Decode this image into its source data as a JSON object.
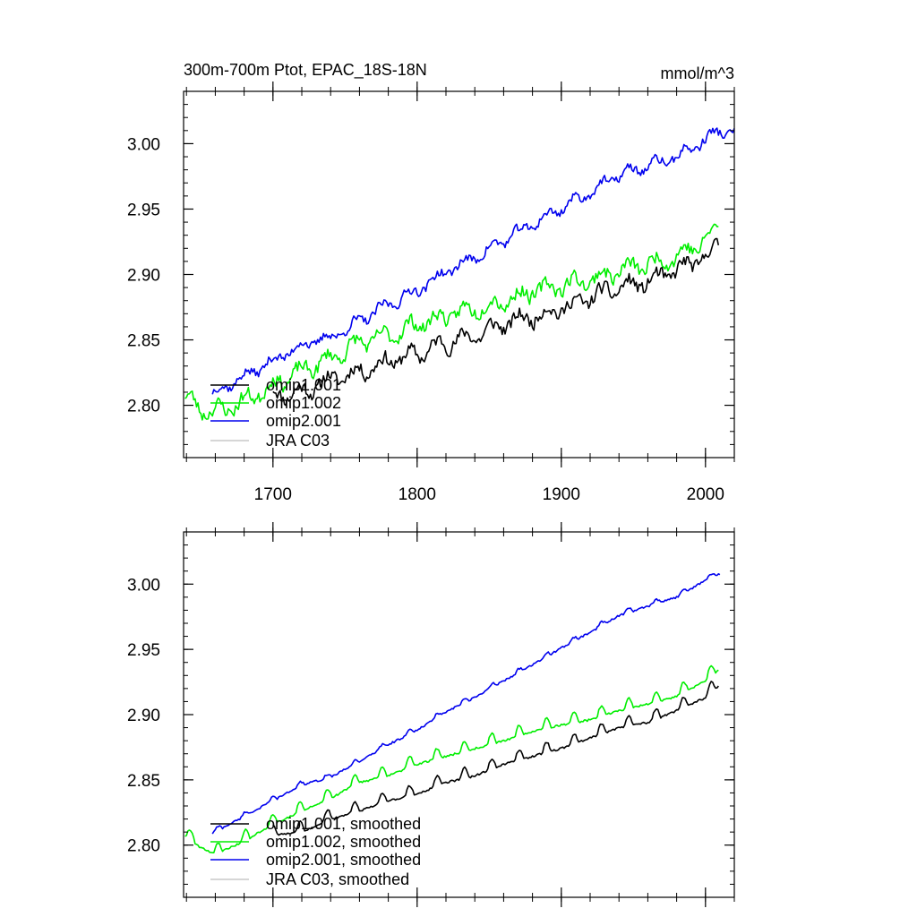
{
  "chart_data": [
    {
      "type": "line",
      "title": "300m-700m Ptot, EPAC_18S-18N",
      "units": "mmol/m^3",
      "xlim": [
        1638,
        2020
      ],
      "ylim": [
        2.76,
        3.04
      ],
      "x_ticks": [
        1700,
        1800,
        1900,
        2000
      ],
      "x_tick_labels": [
        "1700",
        "1800",
        "1900",
        "2000"
      ],
      "y_ticks": [
        2.8,
        2.85,
        2.9,
        2.95,
        3.0
      ],
      "y_tick_labels": [
        "2.80",
        "2.85",
        "2.90",
        "2.95",
        "3.00"
      ],
      "legend_position": "bottom-left",
      "series": [
        {
          "name": "omip1.001",
          "color": "#000000",
          "start_year": 1700,
          "end_year": 2009,
          "step": 1,
          "seed": 11,
          "anchors": [
            [
              1700,
              2.808
            ],
            [
              1720,
              2.81
            ],
            [
              1740,
              2.82
            ],
            [
              1760,
              2.826
            ],
            [
              1780,
              2.834
            ],
            [
              1800,
              2.839
            ],
            [
              1820,
              2.848
            ],
            [
              1840,
              2.853
            ],
            [
              1860,
              2.862
            ],
            [
              1880,
              2.868
            ],
            [
              1900,
              2.874
            ],
            [
              1920,
              2.882
            ],
            [
              1940,
              2.89
            ],
            [
              1960,
              2.894
            ],
            [
              1980,
              2.903
            ],
            [
              2000,
              2.913
            ],
            [
              2009,
              2.922
            ]
          ],
          "amplitude": 0.009,
          "period": 19
        },
        {
          "name": "omip1.002",
          "color": "#00ee00",
          "start_year": 1639,
          "end_year": 2009,
          "step": 1,
          "seed": 23,
          "anchors": [
            [
              1639,
              2.806
            ],
            [
              1650,
              2.798
            ],
            [
              1660,
              2.795
            ],
            [
              1680,
              2.803
            ],
            [
              1700,
              2.816
            ],
            [
              1720,
              2.826
            ],
            [
              1740,
              2.836
            ],
            [
              1760,
              2.848
            ],
            [
              1780,
              2.853
            ],
            [
              1800,
              2.862
            ],
            [
              1820,
              2.868
            ],
            [
              1840,
              2.874
            ],
            [
              1860,
              2.88
            ],
            [
              1880,
              2.887
            ],
            [
              1900,
              2.892
            ],
            [
              1920,
              2.896
            ],
            [
              1940,
              2.903
            ],
            [
              1960,
              2.908
            ],
            [
              1980,
              2.914
            ],
            [
              2000,
              2.926
            ],
            [
              2009,
              2.936
            ]
          ],
          "amplitude": 0.009,
          "period": 19
        },
        {
          "name": "omip2.001",
          "color": "#0000ee",
          "start_year": 1658,
          "end_year": 2020,
          "step": 1,
          "seed": 37,
          "anchors": [
            [
              1658,
              2.809
            ],
            [
              1680,
              2.822
            ],
            [
              1700,
              2.834
            ],
            [
              1720,
              2.846
            ],
            [
              1740,
              2.852
            ],
            [
              1760,
              2.864
            ],
            [
              1780,
              2.877
            ],
            [
              1800,
              2.888
            ],
            [
              1820,
              2.902
            ],
            [
              1840,
              2.913
            ],
            [
              1860,
              2.926
            ],
            [
              1880,
              2.938
            ],
            [
              1900,
              2.951
            ],
            [
              1920,
              2.963
            ],
            [
              1940,
              2.976
            ],
            [
              1960,
              2.983
            ],
            [
              1980,
              2.99
            ],
            [
              2000,
              3.003
            ],
            [
              2010,
              3.01
            ],
            [
              2020,
              3.008
            ]
          ],
          "amplitude": 0.006,
          "period": 19
        },
        {
          "name": "JRA C03",
          "color": "#c8c8c8",
          "start_year": null,
          "end_year": null,
          "anchors": []
        }
      ]
    },
    {
      "type": "line",
      "title": "",
      "units": "",
      "xlim": [
        1638,
        2020
      ],
      "ylim": [
        2.76,
        3.04
      ],
      "x_ticks": [
        1700,
        1800,
        1900,
        2000
      ],
      "y_ticks": [
        2.8,
        2.85,
        2.9,
        2.95,
        3.0
      ],
      "y_tick_labels": [
        "2.80",
        "2.85",
        "2.90",
        "2.95",
        "3.00"
      ],
      "legend_position": "bottom-left",
      "series": [
        {
          "name": "omip1.001, smoothed",
          "color": "#000000",
          "start_year": 1700,
          "end_year": 2009,
          "step": 1,
          "seed": 11,
          "anchors": [
            [
              1700,
              2.808
            ],
            [
              1720,
              2.81
            ],
            [
              1740,
              2.82
            ],
            [
              1760,
              2.826
            ],
            [
              1780,
              2.834
            ],
            [
              1800,
              2.839
            ],
            [
              1820,
              2.848
            ],
            [
              1840,
              2.853
            ],
            [
              1860,
              2.862
            ],
            [
              1880,
              2.868
            ],
            [
              1900,
              2.874
            ],
            [
              1920,
              2.882
            ],
            [
              1940,
              2.89
            ],
            [
              1960,
              2.894
            ],
            [
              1980,
              2.903
            ],
            [
              2000,
              2.913
            ],
            [
              2009,
              2.922
            ]
          ],
          "amplitude": 0.008,
          "period": 19
        },
        {
          "name": "omip1.002, smoothed",
          "color": "#00ee00",
          "start_year": 1639,
          "end_year": 2009,
          "step": 1,
          "seed": 23,
          "anchors": [
            [
              1639,
              2.807
            ],
            [
              1650,
              2.798
            ],
            [
              1660,
              2.793
            ],
            [
              1680,
              2.803
            ],
            [
              1700,
              2.816
            ],
            [
              1720,
              2.826
            ],
            [
              1740,
              2.836
            ],
            [
              1760,
              2.848
            ],
            [
              1780,
              2.853
            ],
            [
              1800,
              2.862
            ],
            [
              1820,
              2.868
            ],
            [
              1840,
              2.874
            ],
            [
              1860,
              2.88
            ],
            [
              1880,
              2.887
            ],
            [
              1900,
              2.892
            ],
            [
              1920,
              2.896
            ],
            [
              1940,
              2.903
            ],
            [
              1960,
              2.908
            ],
            [
              1980,
              2.914
            ],
            [
              2000,
              2.926
            ],
            [
              2009,
              2.934
            ]
          ],
          "amplitude": 0.008,
          "period": 19
        },
        {
          "name": "omip2.001, smoothed",
          "color": "#0000ee",
          "start_year": 1658,
          "end_year": 2010,
          "step": 1,
          "seed": 37,
          "anchors": [
            [
              1658,
              2.809
            ],
            [
              1680,
              2.822
            ],
            [
              1700,
              2.834
            ],
            [
              1720,
              2.846
            ],
            [
              1740,
              2.852
            ],
            [
              1760,
              2.864
            ],
            [
              1780,
              2.877
            ],
            [
              1800,
              2.888
            ],
            [
              1820,
              2.902
            ],
            [
              1840,
              2.913
            ],
            [
              1860,
              2.926
            ],
            [
              1880,
              2.938
            ],
            [
              1900,
              2.951
            ],
            [
              1920,
              2.963
            ],
            [
              1940,
              2.976
            ],
            [
              1960,
              2.983
            ],
            [
              1980,
              2.99
            ],
            [
              2000,
              3.003
            ],
            [
              2010,
              3.008
            ]
          ],
          "amplitude": 0.003,
          "period": 19
        },
        {
          "name": "JRA C03, smoothed",
          "color": "#c8c8c8",
          "start_year": null,
          "end_year": null,
          "anchors": []
        }
      ]
    }
  ]
}
